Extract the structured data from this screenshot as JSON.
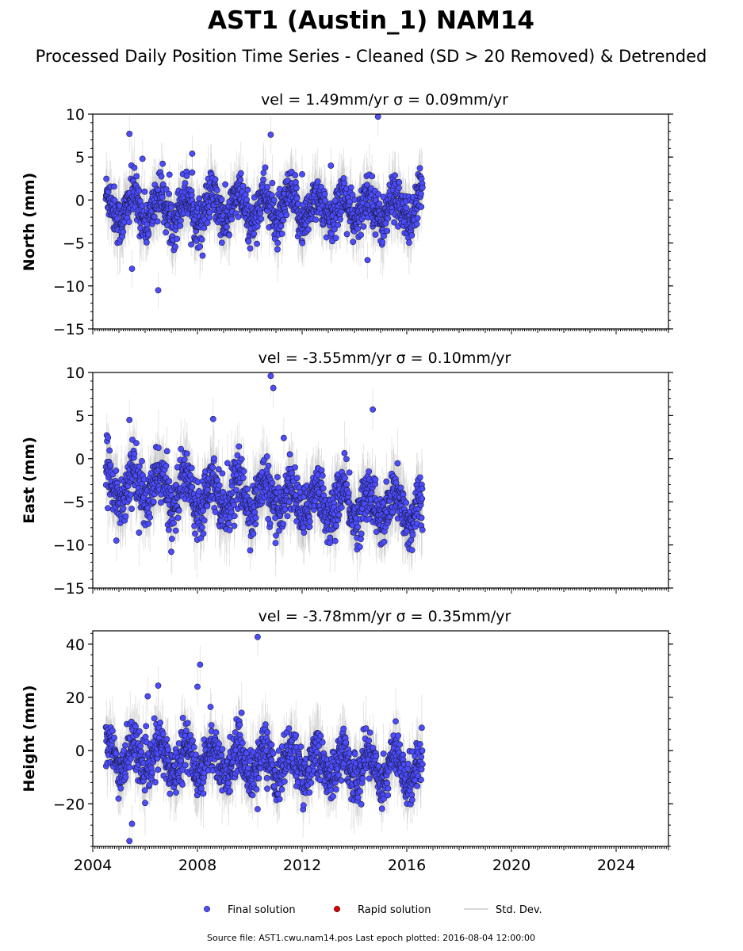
{
  "title": "AST1 (Austin_1) NAM14",
  "subtitle": "Processed Daily Position Time Series - Cleaned (SD > 20 Removed) & Detrended",
  "footer": "Source file: AST1.cwu.nam14.pos  Last epoch plotted: 2016-08-04 12:00:00",
  "legend": [
    {
      "label": "Final solution",
      "color": "#4c4cff",
      "kind": "dot"
    },
    {
      "label": "Rapid solution",
      "color": "#dd0000",
      "kind": "dot"
    },
    {
      "label": "Std. Dev.",
      "color": "#cccccc",
      "kind": "line"
    }
  ],
  "chart_data": [
    {
      "type": "scatter",
      "title": "vel = 1.49mm/yr   σ = 0.09mm/yr",
      "ylabel": "North (mm)",
      "xlim": [
        2004,
        2026
      ],
      "ylim": [
        -15,
        10
      ],
      "yticks": [
        -15,
        -10,
        -5,
        0,
        5,
        10
      ],
      "grid": false,
      "series_summary": {
        "name": "Final solution",
        "x_range": [
          2004.5,
          2016.6
        ],
        "baseline": -1.0,
        "typical_spread": 1.8
      },
      "highlighted_points": [
        {
          "x": 2005.4,
          "y": 7.7
        },
        {
          "x": 2005.9,
          "y": 4.8
        },
        {
          "x": 2006.5,
          "y": -10.5
        },
        {
          "x": 2007.8,
          "y": 5.4
        },
        {
          "x": 2007.8,
          "y": 3.2
        },
        {
          "x": 2010.8,
          "y": 7.6
        },
        {
          "x": 2013.1,
          "y": 4.0
        },
        {
          "x": 2014.9,
          "y": 9.7
        },
        {
          "x": 2016.5,
          "y": 3.7
        },
        {
          "x": 2005.5,
          "y": -8.0
        },
        {
          "x": 2014.5,
          "y": -7.0
        },
        {
          "x": 2012.0,
          "y": 3.0
        }
      ]
    },
    {
      "type": "scatter",
      "title": "vel = -3.55mm/yr   σ = 0.10mm/yr",
      "ylabel": "East (mm)",
      "xlim": [
        2004,
        2026
      ],
      "ylim": [
        -15,
        10
      ],
      "yticks": [
        -15,
        -10,
        -5,
        0,
        5,
        10
      ],
      "grid": false,
      "series_summary": {
        "name": "Final solution",
        "x_range": [
          2004.5,
          2016.6
        ],
        "baseline_start": -3.0,
        "baseline_end": -6.0,
        "typical_spread": 2.0
      },
      "highlighted_points": [
        {
          "x": 2010.8,
          "y": 9.6
        },
        {
          "x": 2010.9,
          "y": 8.2
        },
        {
          "x": 2014.7,
          "y": 5.7
        },
        {
          "x": 2007.0,
          "y": -10.8
        },
        {
          "x": 2005.4,
          "y": 4.5
        },
        {
          "x": 2004.9,
          "y": -9.5
        },
        {
          "x": 2016.2,
          "y": -10.6
        },
        {
          "x": 2008.6,
          "y": 4.6
        },
        {
          "x": 2011.3,
          "y": 2.4
        }
      ]
    },
    {
      "type": "scatter",
      "title": "vel = -3.78mm/yr   σ = 0.35mm/yr",
      "ylabel": "Height (mm)",
      "xlim": [
        2004,
        2026
      ],
      "ylim": [
        -36,
        45
      ],
      "yticks": [
        -20,
        0,
        20,
        40
      ],
      "xticks": [
        2004,
        2008,
        2012,
        2016,
        2020,
        2024
      ],
      "grid": false,
      "series_summary": {
        "name": "Final solution",
        "x_range": [
          2004.5,
          2016.6
        ],
        "baseline_start": -2.0,
        "baseline_end": -7.0,
        "typical_spread": 6.0
      },
      "highlighted_points": [
        {
          "x": 2010.3,
          "y": 42.7
        },
        {
          "x": 2008.1,
          "y": 32.3
        },
        {
          "x": 2006.5,
          "y": 24.4
        },
        {
          "x": 2008.0,
          "y": 24.0
        },
        {
          "x": 2005.4,
          "y": -34.0
        },
        {
          "x": 2005.5,
          "y": -27.5
        },
        {
          "x": 2006.1,
          "y": 20.4
        },
        {
          "x": 2008.5,
          "y": 16.4
        },
        {
          "x": 2010.3,
          "y": -22.0
        }
      ]
    }
  ]
}
